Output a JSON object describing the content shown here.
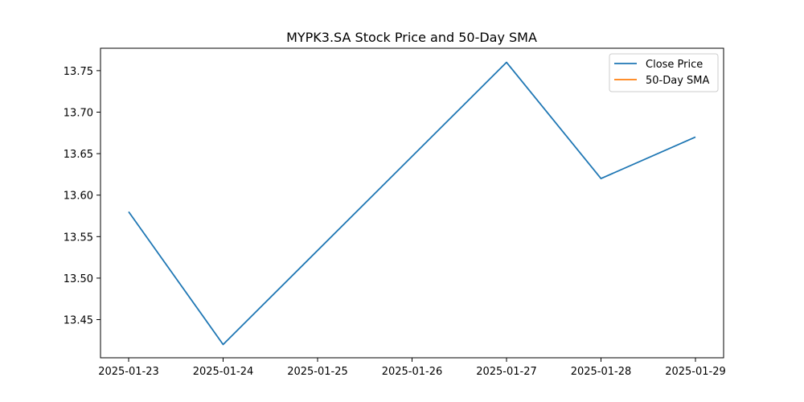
{
  "chart_data": {
    "type": "line",
    "title": "MYPK3.SA Stock Price and 50-Day SMA",
    "xlabel": "",
    "ylabel": "",
    "categories": [
      "2025-01-23",
      "2025-01-24",
      "2025-01-25",
      "2025-01-26",
      "2025-01-27",
      "2025-01-28",
      "2025-01-29"
    ],
    "y_ticks": [
      "13.45",
      "13.50",
      "13.55",
      "13.60",
      "13.65",
      "13.70",
      "13.75"
    ],
    "ylim": [
      13.404,
      13.777
    ],
    "series": [
      {
        "name": "Close Price",
        "color": "#1f77b4",
        "points": [
          {
            "x": "2025-01-23",
            "y": 13.58
          },
          {
            "x": "2025-01-24",
            "y": 13.42
          },
          {
            "x": "2025-01-27",
            "y": 13.76
          },
          {
            "x": "2025-01-28",
            "y": 13.62
          },
          {
            "x": "2025-01-29",
            "y": 13.67
          }
        ]
      },
      {
        "name": "50-Day SMA",
        "color": "#ff7f0e",
        "points": []
      }
    ],
    "grid": false,
    "legend_position": "top-right"
  }
}
